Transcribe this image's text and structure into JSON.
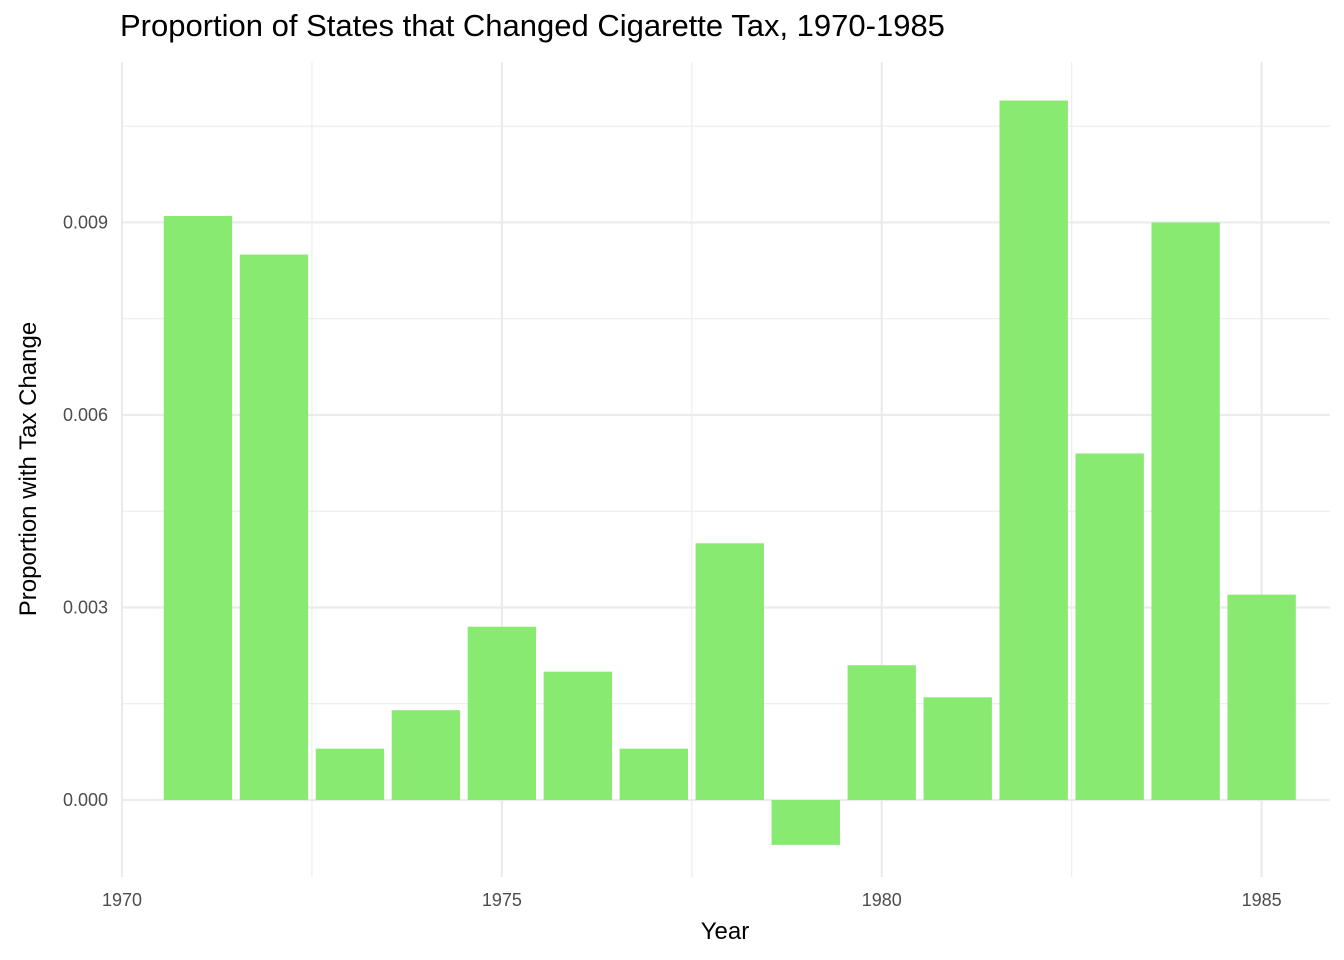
{
  "chart_data": {
    "type": "bar",
    "title": "Proportion of States that Changed Cigarette Tax, 1970-1985",
    "xlabel": "Year",
    "ylabel": "Proportion with Tax Change",
    "x": [
      1971,
      1972,
      1973,
      1974,
      1975,
      1976,
      1977,
      1978,
      1979,
      1980,
      1981,
      1982,
      1983,
      1984,
      1985
    ],
    "values": [
      0.0091,
      0.0085,
      0.0008,
      0.0014,
      0.0027,
      0.002,
      0.0008,
      0.004,
      -0.0007,
      0.0021,
      0.0016,
      0.0109,
      0.0054,
      0.009,
      0.0032
    ],
    "xlim": [
      1970,
      1985.9
    ],
    "ylim": [
      -0.0012,
      0.0115
    ],
    "x_ticks": [
      1970,
      1975,
      1980,
      1985
    ],
    "x_tick_labels": [
      "1970",
      "1975",
      "1980",
      "1985"
    ],
    "y_ticks": [
      0,
      0.003,
      0.006,
      0.009
    ],
    "y_tick_labels": [
      "0.000",
      "0.003",
      "0.006",
      "0.009"
    ],
    "grid": true,
    "legend": "none",
    "bar_color": "#89EA72",
    "grid_color": "#EBEBEB"
  }
}
